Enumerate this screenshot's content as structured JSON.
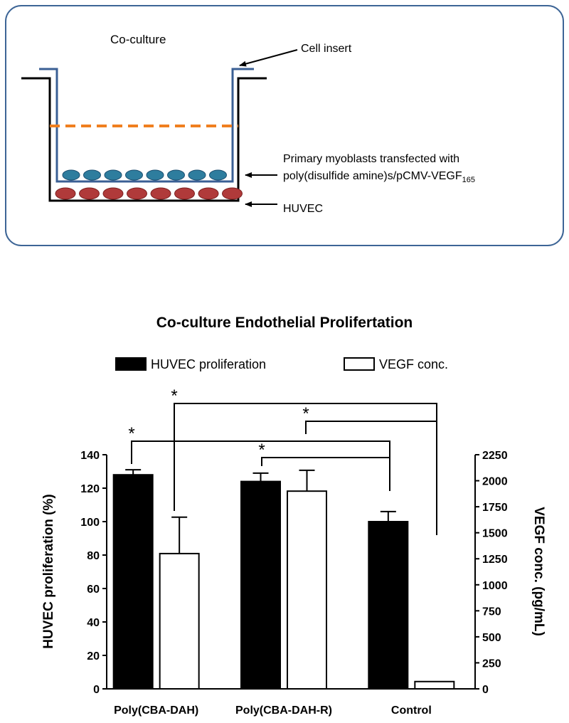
{
  "diagram": {
    "title": "Co-culture",
    "insert_label": "Cell insert",
    "myoblast_label_line1": "Primary myoblasts transfected with",
    "myoblast_label_line2": "poly(disulfide amine)s/pCMV-VEGF",
    "myoblast_label_subscript": "165",
    "huvec_label": "HUVEC"
  },
  "chart_data": {
    "type": "bar",
    "title": "Co-culture Endothelial Prolifertation",
    "categories": [
      "Poly(CBA-DAH)",
      "Poly(CBA-DAH-R)",
      "Control"
    ],
    "series": [
      {
        "name": "HUVEC proliferation",
        "color": "#000000",
        "values": [
          128,
          124,
          100
        ],
        "errors": [
          3,
          5,
          6
        ]
      },
      {
        "name": "VEGF conc.",
        "color": "#ffffff",
        "axis": "y2",
        "values": [
          1300,
          1900,
          70
        ],
        "errors": [
          350,
          200,
          null
        ]
      }
    ],
    "y_label": "HUVEC proliferation (%)",
    "y2_label": "VEGF conc. (pg/mL)",
    "ylim": [
      0,
      140
    ],
    "yticks": [
      0,
      20,
      40,
      60,
      80,
      100,
      120,
      140
    ],
    "y2lim": [
      0,
      2250
    ],
    "y2ticks": [
      0,
      250,
      500,
      750,
      1000,
      1250,
      1500,
      1750,
      2000,
      2250
    ],
    "annotations": [
      "*",
      "*",
      "*",
      "*"
    ]
  }
}
